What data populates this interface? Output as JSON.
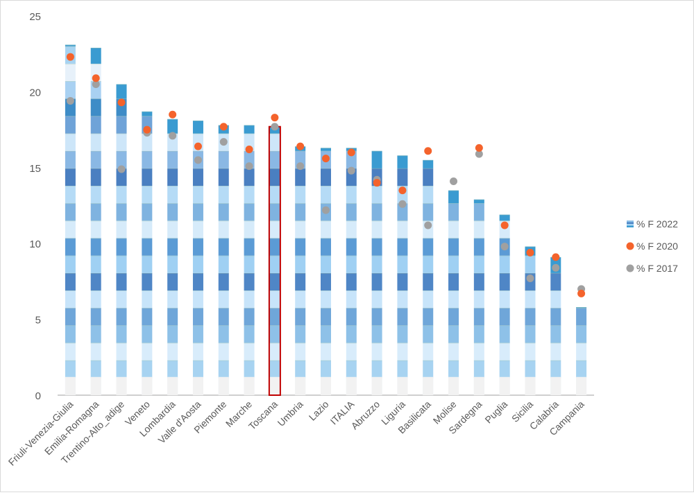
{
  "chart_data": {
    "type": "bar",
    "title": "",
    "xlabel": "",
    "ylabel": "",
    "ylim": [
      0,
      25
    ],
    "yticks": [
      0,
      5,
      10,
      15,
      20,
      25
    ],
    "grid": false,
    "legend_position": "right",
    "highlighted_category": "Toscana",
    "categories": [
      "Friuli-Venezia-Giulia",
      "Emilia-Romagna",
      "Trentino-Alto_adige",
      "Veneto",
      "Lombardia",
      "Valle d'Aosta",
      "Piemonte",
      "Marche",
      "Toscana",
      "Umbria",
      "Lazio",
      "ITALIA",
      "Abruzzo",
      "Liguria",
      "Basilicata",
      "Molise",
      "Sardegna",
      "Puglia",
      "Sicilia",
      "Calabria",
      "Campania"
    ],
    "series": [
      {
        "name": "% F 2022",
        "kind": "bar",
        "color": "#3a9bd1",
        "values": [
          23.1,
          22.9,
          20.5,
          18.7,
          18.2,
          18.1,
          17.8,
          17.8,
          17.7,
          16.4,
          16.3,
          16.3,
          16.1,
          15.8,
          15.5,
          13.5,
          12.9,
          11.9,
          9.8,
          9.1,
          5.8
        ]
      },
      {
        "name": "% F 2020",
        "kind": "scatter",
        "color": "#f4632c",
        "values": [
          22.3,
          20.9,
          19.3,
          17.5,
          18.5,
          16.4,
          17.7,
          16.2,
          18.3,
          16.4,
          15.6,
          16.0,
          14.0,
          13.5,
          16.1,
          null,
          16.3,
          11.2,
          9.4,
          9.1,
          6.7
        ]
      },
      {
        "name": "% F 2017",
        "kind": "scatter",
        "color": "#a0a0a0",
        "values": [
          19.4,
          20.5,
          14.9,
          17.3,
          17.1,
          15.5,
          16.7,
          15.1,
          17.7,
          15.1,
          12.2,
          14.8,
          14.2,
          12.6,
          11.2,
          14.1,
          15.9,
          9.8,
          7.7,
          8.4,
          7.0
        ]
      }
    ]
  }
}
